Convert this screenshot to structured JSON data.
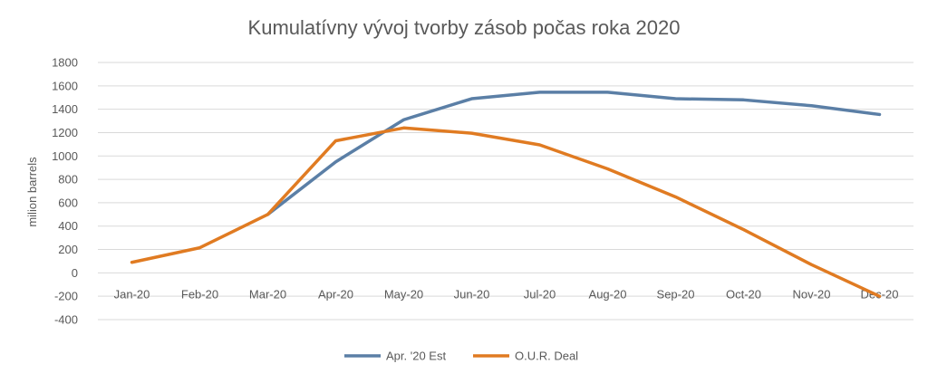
{
  "chart_data": {
    "type": "line",
    "title": "Kumulatívny vývoj tvorby zásob počas roka 2020",
    "ylabel": "milion barrels",
    "xlabel": "",
    "categories": [
      "Jan-20",
      "Feb-20",
      "Mar-20",
      "Apr-20",
      "May-20",
      "Jun-20",
      "Jul-20",
      "Aug-20",
      "Sep-20",
      "Oct-20",
      "Nov-20",
      "Dec-20"
    ],
    "yticks": [
      "-400",
      "-200",
      "0",
      "200",
      "400",
      "600",
      "800",
      "1000",
      "1200",
      "1400",
      "1600",
      "1800"
    ],
    "ylim": [
      -400,
      1800
    ],
    "grid": true,
    "legend_position": "bottom",
    "series": [
      {
        "name": "Apr. '20 Est",
        "color": "#5B7FA6",
        "values": [
          null,
          null,
          500,
          950,
          1310,
          1490,
          1545,
          1545,
          1490,
          1480,
          1430,
          1355
        ]
      },
      {
        "name": "O.U.R. Deal",
        "color": "#E07B22",
        "values": [
          90,
          215,
          500,
          1130,
          1240,
          1195,
          1095,
          890,
          650,
          370,
          70,
          -200
        ]
      }
    ]
  }
}
